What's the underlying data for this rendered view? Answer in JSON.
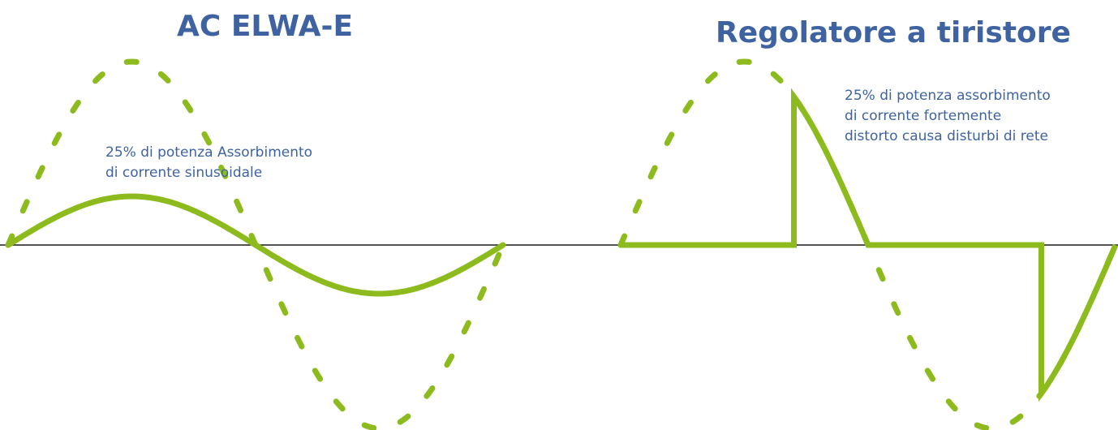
{
  "left_panel": {
    "title": "AC ELWA-E",
    "caption_lines": [
      "25% di potenza Assorbimento",
      "di corrente sinusoidale"
    ]
  },
  "right_panel": {
    "title": "Regolatore a tiristore",
    "caption_lines": [
      "25% di potenza assorbimento",
      "di corrente fortemente",
      "distorto causa disturbi di rete"
    ]
  },
  "colors": {
    "waveform": "#8dbb1d",
    "axis": "#1a1a1a",
    "text": "#3e63a0"
  },
  "waveforms": {
    "left_reference": "dashed full-amplitude sine",
    "left_current": "solid sine at reduced amplitude",
    "right_reference": "dashed full-amplitude sine",
    "right_current": "solid phase-cut thyristor waveform"
  }
}
